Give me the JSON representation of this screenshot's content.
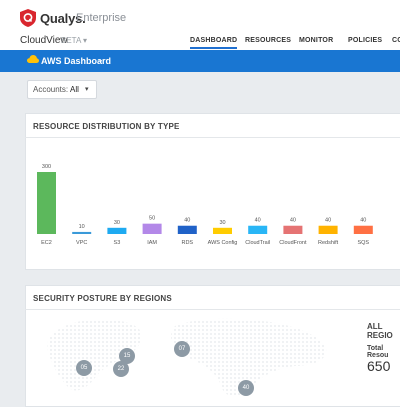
{
  "header": {
    "brand": "Qualys.",
    "edition": "Enterprise",
    "app_name": "CloudView",
    "app_tag": "BETA",
    "app_caret": "▾",
    "nav": [
      "DASHBOARD",
      "RESOURCES",
      "MONITOR",
      "POLICIES",
      "CO"
    ]
  },
  "dashbar": {
    "title": "AWS Dashboard",
    "caret": "⌄"
  },
  "filter": {
    "label": "Accounts:",
    "value": "All",
    "caret": "▾"
  },
  "panels": {
    "resource_title": "RESOURCE DISTRIBUTION BY TYPE",
    "security_title": "SECURITY POSTURE BY REGIONS"
  },
  "chart_data": {
    "type": "bar",
    "categories": [
      "EC2",
      "VPC",
      "S3",
      "IAM",
      "RDS",
      "AWS Config",
      "CloudTrail",
      "CloudFront",
      "Redshift",
      "SQS"
    ],
    "values": [
      300,
      10,
      30,
      50,
      40,
      30,
      40,
      40,
      40,
      40
    ],
    "colors": [
      "#5cb85c",
      "#3a9ad9",
      "#1eaaf1",
      "#b388e8",
      "#2062c8",
      "#ffcc00",
      "#29b6f6",
      "#e57373",
      "#ffb300",
      "#ff7043"
    ]
  },
  "regions": {
    "title": "ALL REGIO",
    "resources_label": "Total Resou",
    "resources_value": "650",
    "bubbles": [
      {
        "name": "bubble-05",
        "label": "05"
      },
      {
        "name": "bubble-15",
        "label": "15"
      },
      {
        "name": "bubble-22",
        "label": "22"
      },
      {
        "name": "bubble-07",
        "label": "07"
      },
      {
        "name": "bubble-40",
        "label": "40"
      }
    ]
  }
}
